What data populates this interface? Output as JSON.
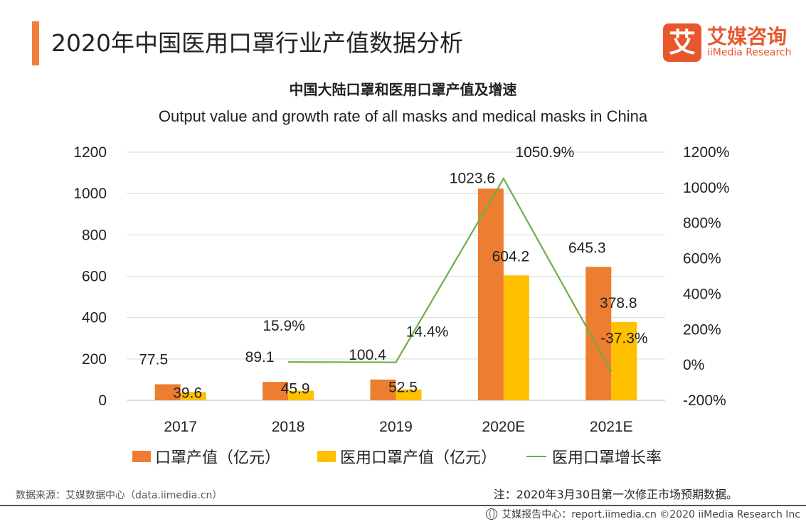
{
  "header": {
    "title": "2020年中国医用口罩行业产值数据分析",
    "logo_cn": "艾媒咨询",
    "logo_en": "iiMedia Research",
    "logo_glyph": "艾"
  },
  "colors": {
    "accent": "#f0803c",
    "bar_masks": "#ed7d31",
    "bar_medical": "#ffc000",
    "line_growth": "#70ad47",
    "brand": "#e8562c"
  },
  "chart_data": {
    "type": "bar",
    "title": "中国大陆口罩和医用口罩产值及增速",
    "subtitle": "Output value and growth rate of all masks and medical masks in China",
    "categories": [
      "2017",
      "2018",
      "2019",
      "2020E",
      "2021E"
    ],
    "series": [
      {
        "name": "口罩产值（亿元）",
        "type": "bar",
        "axis": "left",
        "values": [
          77.5,
          89.1,
          100.4,
          1023.6,
          645.3
        ]
      },
      {
        "name": "医用口罩产值（亿元）",
        "type": "bar",
        "axis": "left",
        "values": [
          39.6,
          45.9,
          52.5,
          604.2,
          378.8
        ]
      },
      {
        "name": "医用口罩增长率",
        "type": "line",
        "axis": "right",
        "values": [
          null,
          15.9,
          14.4,
          1050.9,
          -37.3
        ]
      }
    ],
    "data_labels": {
      "masks": [
        "77.5",
        "89.1",
        "100.4",
        "1023.6",
        "645.3"
      ],
      "medical": [
        "39.6",
        "45.9",
        "52.5",
        "604.2",
        "378.8"
      ],
      "growth": [
        "15.9%",
        "14.4%",
        "1050.9%",
        "-37.3%"
      ]
    },
    "ylim": [
      0,
      1200
    ],
    "y2lim": [
      -200,
      1200
    ],
    "y_ticks": [
      "1200",
      "1000",
      "800",
      "600",
      "400",
      "200",
      "0"
    ],
    "y2_ticks": [
      "1200%",
      "1000%",
      "800%",
      "600%",
      "400%",
      "200%",
      "0%",
      "-200%"
    ],
    "grid": true,
    "legend_position": "bottom"
  },
  "footer": {
    "source": "数据来源：艾媒数据中心（data.iimedia.cn）",
    "note": "注：2020年3月30日第一次修正市场预期数据。",
    "credit": "艾媒报告中心：report.iimedia.cn ©2020 iiMedia Research Inc"
  }
}
